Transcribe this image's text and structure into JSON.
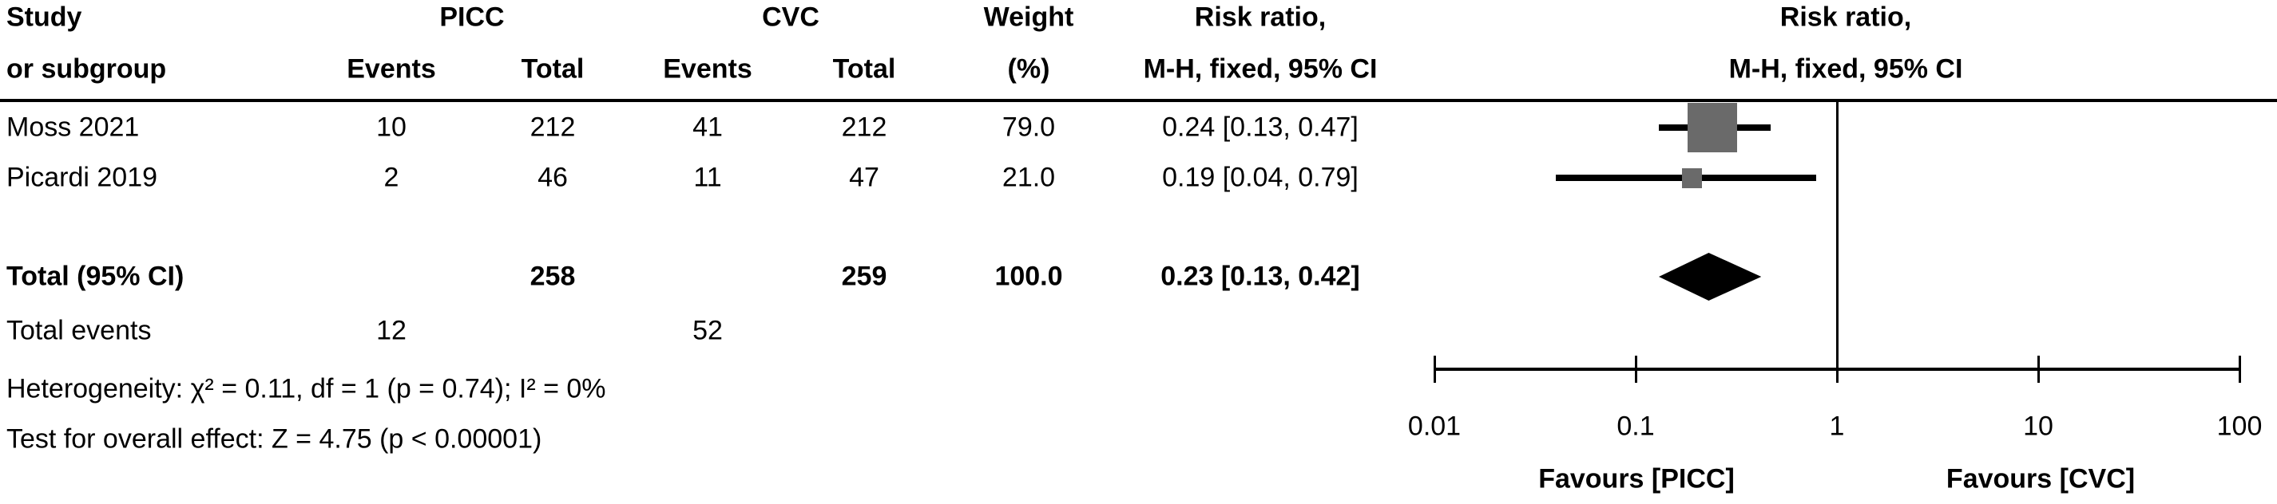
{
  "figure": {
    "col_headers": {
      "study_line1": "Study",
      "study_line2": "or subgroup",
      "group_picc": "PICC",
      "group_cvc": "CVC",
      "events": "Events",
      "total": "Total",
      "weight_line1": "Weight",
      "weight_line2": "(%)",
      "rr_line1": "Risk ratio,",
      "rr_line2": "M-H, fixed, 95% CI",
      "plot_rr_line1": "Risk ratio,",
      "plot_rr_line2": "M-H, fixed, 95% CI"
    }
  },
  "chart_data": {
    "type": "forest",
    "effect_measure": "Risk ratio, M-H, fixed, 95% CI",
    "comparison_left": "PICC",
    "comparison_right": "CVC",
    "x_scale": "log10",
    "x_range": [
      0.01,
      100
    ],
    "x_ticks": [
      0.01,
      0.1,
      1,
      10,
      100
    ],
    "null_line": 1,
    "marker_color": "#6a6a6a",
    "line_color": "#000000",
    "studies": [
      {
        "study": "Moss 2021",
        "picc_events": 10,
        "picc_total": 212,
        "cvc_events": 41,
        "cvc_total": 212,
        "weight": "79.0",
        "weight_pct": 79.0,
        "rr": 0.24,
        "ci_low": 0.13,
        "ci_high": 0.47,
        "rr_ci_text": "0.24 [0.13, 0.47]"
      },
      {
        "study": "Picardi 2019",
        "picc_events": 2,
        "picc_total": 46,
        "cvc_events": 11,
        "cvc_total": 47,
        "weight": "21.0",
        "weight_pct": 21.0,
        "rr": 0.19,
        "ci_low": 0.04,
        "ci_high": 0.79,
        "rr_ci_text": "0.19 [0.04, 0.79]"
      }
    ],
    "total": {
      "label": "Total (95% CI)",
      "picc_total": 258,
      "cvc_total": 259,
      "weight": "100.0",
      "rr": 0.23,
      "ci_low": 0.13,
      "ci_high": 0.42,
      "rr_ci_text": "0.23 [0.13, 0.42]"
    },
    "total_events": {
      "label": "Total events",
      "picc": 12,
      "cvc": 52
    },
    "heterogeneity": "Heterogeneity: χ² = 0.11, df = 1 (p = 0.74); I² = 0%",
    "overall_effect": "Test for overall effect: Z = 4.75 (p < 0.00001)",
    "favours_left": "Favours [PICC]",
    "favours_right": "Favours [CVC]"
  }
}
